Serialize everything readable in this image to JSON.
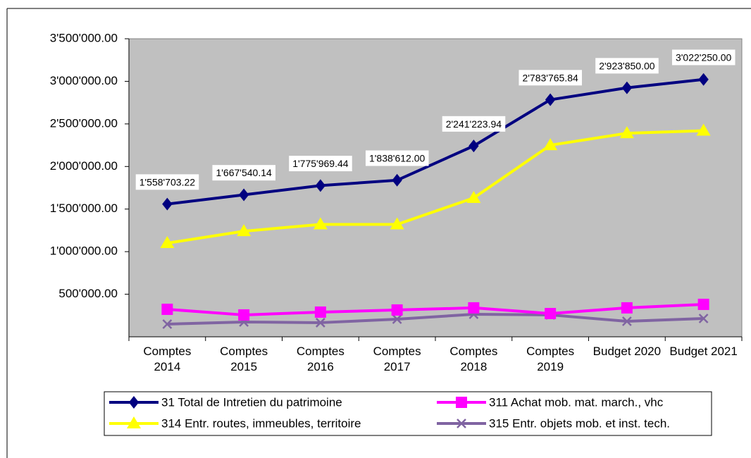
{
  "chart_data": {
    "type": "line",
    "categories": [
      "Comptes 2014",
      "Comptes 2015",
      "Comptes 2016",
      "Comptes 2017",
      "Comptes 2018",
      "Comptes 2019",
      "Budget 2020",
      "Budget 2021"
    ],
    "ylim": [
      0,
      3500000
    ],
    "yticks": [
      {
        "value": 500000,
        "label": "500'000.00"
      },
      {
        "value": 1000000,
        "label": "1'000'000.00"
      },
      {
        "value": 1500000,
        "label": "1'500'000.00"
      },
      {
        "value": 2000000,
        "label": "2'000'000.00"
      },
      {
        "value": 2500000,
        "label": "2'500'000.00"
      },
      {
        "value": 3000000,
        "label": "3'000'000.00"
      },
      {
        "value": 3500000,
        "label": "3'500'000.00"
      }
    ],
    "grid": false,
    "plot_background": "#c0c0c0",
    "legend": "bottom",
    "series": [
      {
        "name": "31 Total de Intretien du patrimoine",
        "color": "#000080",
        "marker": "diamond",
        "values": [
          1558703.22,
          1667540.14,
          1775969.44,
          1838612.0,
          2241223.94,
          2783765.84,
          2923850.0,
          3022250.0
        ],
        "value_labels": [
          "1'558'703.22",
          "1'667'540.14",
          "1'775'969.44",
          "1'838'612.00",
          "2'241'223.94",
          "2'783'765.84",
          "2'923'850.00",
          "3'022'250.00"
        ]
      },
      {
        "name": "311 Achat mob. mat. march., vhc",
        "color": "#ff00ff",
        "marker": "square",
        "values": [
          323000,
          257000,
          290000,
          315000,
          340000,
          273000,
          340000,
          381000
        ]
      },
      {
        "name": "314 Entr. routes, immeubles, territoire",
        "color": "#ffff00",
        "marker": "triangle",
        "values": [
          1100000,
          1240000,
          1320000,
          1320000,
          1630000,
          2250000,
          2390000,
          2420000
        ]
      },
      {
        "name": "315 Entr. objets mob. et inst. tech.",
        "color": "#8064a2",
        "marker": "x",
        "values": [
          149000,
          174000,
          166000,
          207000,
          265000,
          257000,
          182000,
          215000
        ]
      }
    ]
  }
}
